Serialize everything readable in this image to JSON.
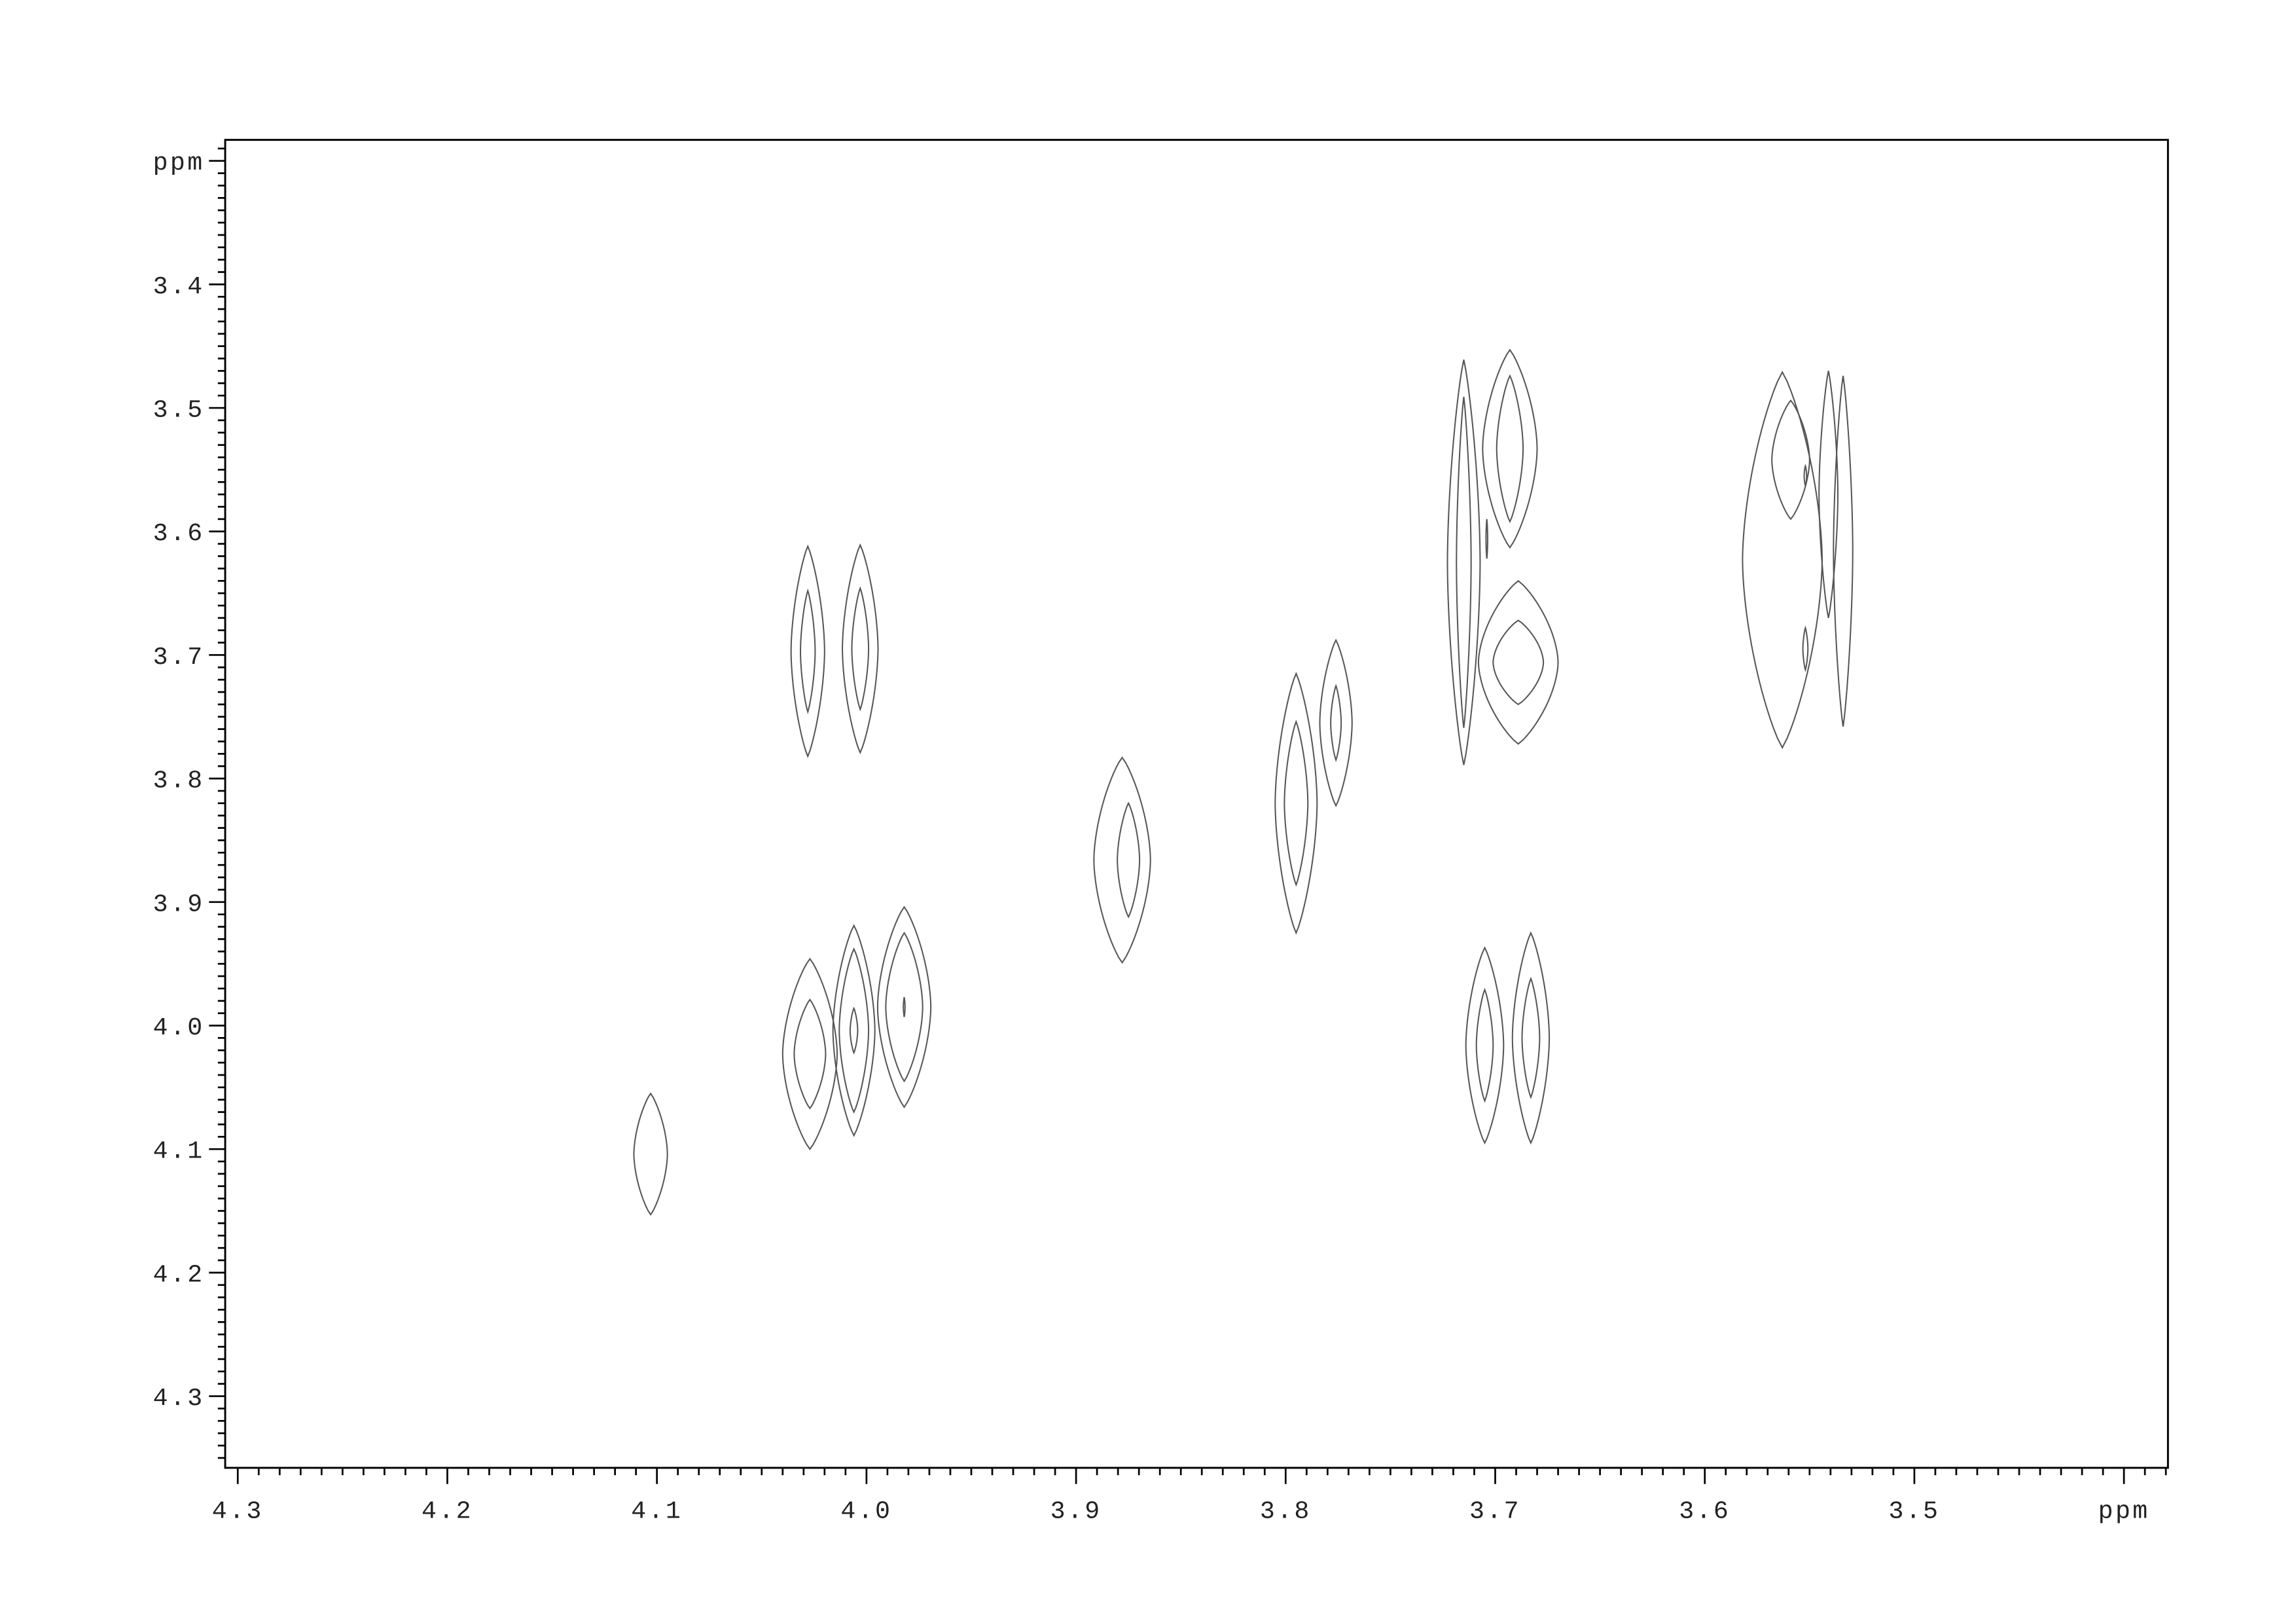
{
  "chart_data": {
    "type": "contour",
    "title": "",
    "xlabel": "ppm",
    "ylabel": "ppm",
    "xlim": [
      4.306,
      3.379
    ],
    "ylim": [
      3.283,
      4.358
    ],
    "x_reversed": true,
    "y_reversed": true,
    "grid": false,
    "x_ticks": [
      {
        "value": 4.3,
        "label": "4.3"
      },
      {
        "value": 4.2,
        "label": "4.2"
      },
      {
        "value": 4.1,
        "label": "4.1"
      },
      {
        "value": 4.0,
        "label": "4.0"
      },
      {
        "value": 3.9,
        "label": "3.9"
      },
      {
        "value": 3.8,
        "label": "3.8"
      },
      {
        "value": 3.7,
        "label": "3.7"
      },
      {
        "value": 3.6,
        "label": "3.6"
      },
      {
        "value": 3.5,
        "label": "3.5"
      },
      {
        "value": 3.4,
        "label": "ppm"
      }
    ],
    "y_ticks": [
      {
        "value": 3.3,
        "label": "ppm"
      },
      {
        "value": 3.4,
        "label": "3.4"
      },
      {
        "value": 3.5,
        "label": "3.5"
      },
      {
        "value": 3.6,
        "label": "3.6"
      },
      {
        "value": 3.7,
        "label": "3.7"
      },
      {
        "value": 3.8,
        "label": "3.8"
      },
      {
        "value": 3.9,
        "label": "3.9"
      },
      {
        "value": 4.0,
        "label": "4.0"
      },
      {
        "value": 4.1,
        "label": "4.1"
      },
      {
        "value": 4.2,
        "label": "4.2"
      },
      {
        "value": 4.3,
        "label": "4.3"
      }
    ],
    "minor_tick_step": 0.01,
    "line_color": "#555555",
    "peaks": [
      {
        "cx": 4.103,
        "cy": 4.104,
        "levels": [
          {
            "rx": 0.008,
            "ry": 0.049
          }
        ]
      },
      {
        "cx": 4.028,
        "cy": 3.697,
        "levels": [
          {
            "rx": 0.008,
            "ry": 0.085
          },
          {
            "rx": 0.0035,
            "ry": 0.049
          }
        ]
      },
      {
        "cx": 4.003,
        "cy": 3.695,
        "levels": [
          {
            "rx": 0.0085,
            "ry": 0.084
          },
          {
            "rx": 0.004,
            "ry": 0.049
          }
        ]
      },
      {
        "cx": 4.027,
        "cy": 4.023,
        "levels": [
          {
            "rx": 0.013,
            "ry": 0.077
          },
          {
            "rx": 0.0075,
            "ry": 0.044
          }
        ]
      },
      {
        "cx": 4.006,
        "cy": 4.004,
        "levels": [
          {
            "rx": 0.01,
            "ry": 0.085
          },
          {
            "rx": 0.007,
            "ry": 0.066
          },
          {
            "rx": 0.0018,
            "ry": 0.018
          }
        ]
      },
      {
        "cx": 3.982,
        "cy": 3.985,
        "levels": [
          {
            "rx": 0.0127,
            "ry": 0.081
          },
          {
            "rx": 0.0088,
            "ry": 0.06
          },
          {
            "rx": 0.0004,
            "ry": 0.008
          }
        ]
      },
      {
        "cx": 3.878,
        "cy": 3.866,
        "levels": [
          {
            "rx": 0.0135,
            "ry": 0.083
          }
        ]
      },
      {
        "cx": 3.875,
        "cy": 3.866,
        "levels": [
          {
            "rx": 0.0053,
            "ry": 0.046
          }
        ]
      },
      {
        "cx": 3.795,
        "cy": 3.82,
        "levels": [
          {
            "rx": 0.01,
            "ry": 0.105
          },
          {
            "rx": 0.0056,
            "ry": 0.066
          }
        ]
      },
      {
        "cx": 3.776,
        "cy": 3.755,
        "levels": [
          {
            "rx": 0.0077,
            "ry": 0.067
          },
          {
            "rx": 0.0025,
            "ry": 0.03
          }
        ]
      },
      {
        "cx": 3.705,
        "cy": 4.016,
        "levels": [
          {
            "rx": 0.009,
            "ry": 0.079
          },
          {
            "rx": 0.004,
            "ry": 0.045
          }
        ]
      },
      {
        "cx": 3.683,
        "cy": 4.01,
        "levels": [
          {
            "rx": 0.0088,
            "ry": 0.085
          },
          {
            "rx": 0.0042,
            "ry": 0.048
          }
        ]
      },
      {
        "cx": 3.715,
        "cy": 3.625,
        "levels": [
          {
            "rx": 0.0078,
            "ry": 0.164
          },
          {
            "rx": 0.0035,
            "ry": 0.134
          }
        ]
      },
      {
        "cx": 3.693,
        "cy": 3.533,
        "levels": [
          {
            "rx": 0.013,
            "ry": 0.08
          },
          {
            "rx": 0.0063,
            "ry": 0.059
          }
        ]
      },
      {
        "cx": 3.689,
        "cy": 3.706,
        "levels": [
          {
            "rx": 0.019,
            "ry": 0.066
          },
          {
            "rx": 0.012,
            "ry": 0.034
          }
        ]
      },
      {
        "cx": 3.704,
        "cy": 3.606,
        "levels": [
          {
            "rx": 0.0004,
            "ry": 0.016
          }
        ]
      },
      {
        "cx": 3.563,
        "cy": 3.623,
        "levels": [
          {
            "rx": 0.019,
            "ry": 0.152
          }
        ]
      },
      {
        "cx": 3.559,
        "cy": 3.542,
        "levels": [
          {
            "rx": 0.009,
            "ry": 0.048
          }
        ]
      },
      {
        "cx": 3.534,
        "cy": 3.616,
        "levels": [
          {
            "rx": 0.0046,
            "ry": 0.142
          }
        ]
      },
      {
        "cx": 3.541,
        "cy": 3.57,
        "levels": [
          {
            "rx": 0.0045,
            "ry": 0.1
          }
        ]
      },
      {
        "cx": 3.552,
        "cy": 3.555,
        "levels": [
          {
            "rx": 0.0006,
            "ry": 0.008
          }
        ]
      },
      {
        "cx": 3.552,
        "cy": 3.695,
        "levels": [
          {
            "rx": 0.0012,
            "ry": 0.017
          }
        ]
      }
    ]
  }
}
